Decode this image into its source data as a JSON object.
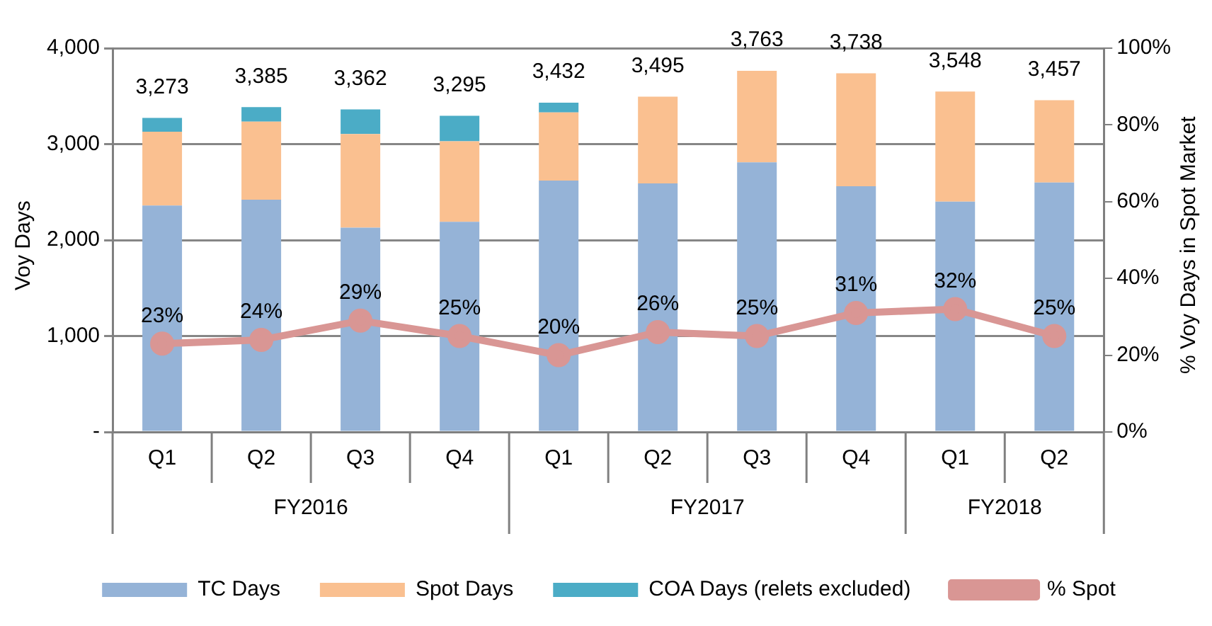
{
  "chart_data": {
    "type": "bar",
    "stacked": true,
    "categories": [
      "Q1",
      "Q2",
      "Q3",
      "Q4",
      "Q1",
      "Q2",
      "Q3",
      "Q4",
      "Q1",
      "Q2"
    ],
    "series": [
      {
        "name": "TC Days",
        "color": "#95b3d7",
        "values": [
          2360,
          2420,
          2130,
          2190,
          2620,
          2590,
          2810,
          2560,
          2400,
          2600
        ]
      },
      {
        "name": "Spot Days",
        "color": "#fac090",
        "values": [
          770,
          815,
          975,
          840,
          710,
          905,
          953,
          1178,
          1148,
          857
        ]
      },
      {
        "name": "COA Days (relets excluded)",
        "color": "#4bacc6",
        "values": [
          143,
          150,
          257,
          265,
          102,
          0,
          0,
          0,
          0,
          0
        ]
      },
      {
        "name": "% Spot",
        "type": "line",
        "axis": "y2",
        "color": "#d99694",
        "marker": "circle",
        "values": [
          23,
          24,
          29,
          25,
          20,
          26,
          25,
          31,
          32,
          25
        ],
        "value_labels": [
          "23%",
          "24%",
          "29%",
          "25%",
          "20%",
          "26%",
          "25%",
          "31%",
          "32%",
          "25%"
        ]
      }
    ],
    "totals": [
      "3,273",
      "3,385",
      "3,362",
      "3,295",
      "3,432",
      "3,495",
      "3,763",
      "3,738",
      "3,548",
      "3,457"
    ],
    "ylabel": "Voy Days",
    "y2label": "% Voy Days in Spot Market",
    "ylim": [
      0,
      4000
    ],
    "yticks": [
      {
        "value": 0,
        "label": "-"
      },
      {
        "value": 1000,
        "label": "1,000"
      },
      {
        "value": 2000,
        "label": "2,000"
      },
      {
        "value": 3000,
        "label": "3,000"
      },
      {
        "value": 4000,
        "label": "4,000"
      }
    ],
    "y2lim": [
      0,
      100
    ],
    "y2ticks": [
      {
        "value": 0,
        "label": "0%"
      },
      {
        "value": 20,
        "label": "20%"
      },
      {
        "value": 40,
        "label": "40%"
      },
      {
        "value": 60,
        "label": "60%"
      },
      {
        "value": 80,
        "label": "80%"
      },
      {
        "value": 100,
        "label": "100%"
      }
    ],
    "annotations": [
      "FY2016",
      "FY2017",
      "FY2018"
    ],
    "grid": "y",
    "legend": "bottom"
  }
}
